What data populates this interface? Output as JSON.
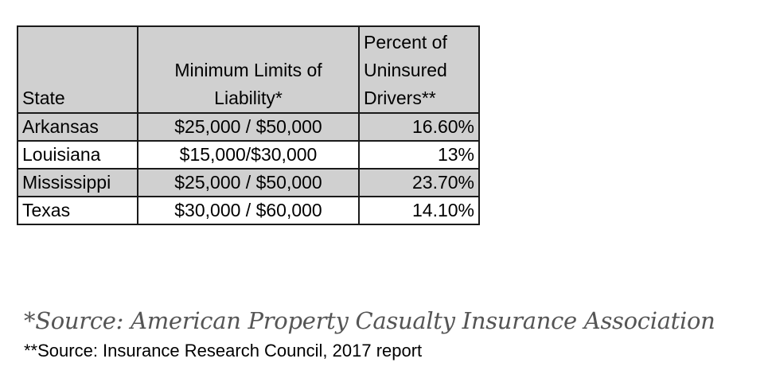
{
  "table": {
    "headers": {
      "state": "State",
      "limits_line1": "Minimum Limits of",
      "limits_line2": "Liability*",
      "pct_line1": "Percent of",
      "pct_line2": "Uninsured",
      "pct_line3": "Drivers**"
    },
    "rows": [
      {
        "state": "Arkansas",
        "limits": "$25,000 / $50,000",
        "pct": "16.60%"
      },
      {
        "state": "Louisiana",
        "limits": "$15,000/$30,000",
        "pct": "13%"
      },
      {
        "state": "Mississippi",
        "limits": "$25,000 / $50,000",
        "pct": "23.70%"
      },
      {
        "state": "Texas",
        "limits": "$30,000 / $60,000",
        "pct": "14.10%"
      }
    ],
    "shade_color": "#d0d0d0"
  },
  "notes": {
    "source_1": "*Source: American Property Casualty Insurance Association",
    "source_2": "**Source: Insurance Research Council, 2017 report"
  }
}
